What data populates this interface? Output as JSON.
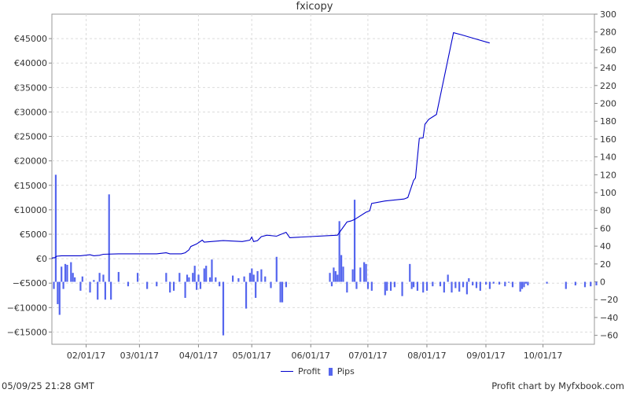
{
  "chart_data": {
    "type": "line",
    "title": "fxicopy",
    "x_tick_labels": [
      "02/01/17",
      "03/01/17",
      "04/01/17",
      "05/01/17",
      "06/01/17",
      "07/01/17",
      "08/01/17",
      "09/01/17",
      "10/01/17"
    ],
    "y_left": {
      "label": "Profit",
      "ylim": [
        -17500,
        50000
      ],
      "ticks": [
        -15000,
        -10000,
        -5000,
        0,
        5000,
        10000,
        15000,
        20000,
        25000,
        30000,
        35000,
        40000,
        45000
      ],
      "tick_labels": [
        "−€15000",
        "−€10000",
        "−€5000",
        "€0",
        "€5000",
        "€10000",
        "€15000",
        "€20000",
        "€25000",
        "€30000",
        "€35000",
        "€40000",
        "€45000"
      ]
    },
    "y_right": {
      "label": "Pips",
      "ylim": [
        -70,
        300
      ],
      "ticks": [
        -60,
        -40,
        -20,
        0,
        20,
        40,
        60,
        80,
        100,
        120,
        140,
        160,
        180,
        200,
        220,
        240,
        260,
        280,
        300
      ],
      "tick_labels": [
        "−60",
        "−40",
        "−20",
        "0",
        "20",
        "40",
        "60",
        "80",
        "100",
        "120",
        "140",
        "160",
        "180",
        "200",
        "220",
        "240",
        "260",
        "280",
        "300"
      ]
    },
    "series": [
      {
        "name": "Profit",
        "kind": "line",
        "color": "#0000cc",
        "points": [
          [
            0.0,
            0
          ],
          [
            0.5,
            200
          ],
          [
            1.5,
            200
          ],
          [
            2.5,
            500
          ],
          [
            5,
            600
          ],
          [
            10,
            600
          ],
          [
            15,
            600
          ],
          [
            20,
            800
          ],
          [
            22,
            600
          ],
          [
            25,
            700
          ],
          [
            27,
            900
          ],
          [
            35,
            1000
          ],
          [
            45,
            1000
          ],
          [
            55,
            1000
          ],
          [
            60,
            1200
          ],
          [
            62,
            1000
          ],
          [
            68,
            1000
          ],
          [
            70,
            1200
          ],
          [
            72,
            1800
          ],
          [
            73,
            2500
          ],
          [
            76,
            3000
          ],
          [
            79,
            3800
          ],
          [
            80,
            3400
          ],
          [
            90,
            3700
          ],
          [
            100,
            3500
          ],
          [
            104,
            3800
          ],
          [
            105,
            4400
          ],
          [
            106,
            3500
          ],
          [
            108,
            3700
          ],
          [
            110,
            4500
          ],
          [
            113,
            4800
          ],
          [
            118,
            4600
          ],
          [
            123,
            5400
          ],
          [
            125,
            4300
          ],
          [
            150,
            4800
          ],
          [
            155,
            7500
          ],
          [
            157,
            7700
          ],
          [
            159,
            8000
          ],
          [
            165,
            9500
          ],
          [
            167,
            9800
          ],
          [
            168,
            11300
          ],
          [
            175,
            11800
          ],
          [
            185,
            12200
          ],
          [
            187,
            12500
          ],
          [
            190,
            16000
          ],
          [
            191,
            16500
          ],
          [
            193,
            24600
          ],
          [
            195,
            24700
          ],
          [
            196,
            27500
          ],
          [
            198,
            28500
          ],
          [
            202,
            29500
          ],
          [
            211,
            46200
          ],
          [
            215,
            45800
          ],
          [
            222,
            45000
          ],
          [
            230,
            44100
          ]
        ]
      },
      {
        "name": "Pips",
        "kind": "bar",
        "color": "#5566ee",
        "points": [
          [
            1,
            -8
          ],
          [
            2,
            120
          ],
          [
            3,
            -25
          ],
          [
            4,
            -37
          ],
          [
            5,
            17
          ],
          [
            6,
            -8
          ],
          [
            7,
            20
          ],
          [
            8,
            19
          ],
          [
            10,
            22
          ],
          [
            11,
            10
          ],
          [
            12,
            5
          ],
          [
            15,
            -10
          ],
          [
            16,
            6
          ],
          [
            20,
            -12
          ],
          [
            22,
            2
          ],
          [
            24,
            -20
          ],
          [
            25,
            10
          ],
          [
            27,
            8
          ],
          [
            28,
            -20
          ],
          [
            30,
            98
          ],
          [
            31,
            -20
          ],
          [
            35,
            11
          ],
          [
            40,
            -5
          ],
          [
            45,
            10
          ],
          [
            50,
            -8
          ],
          [
            55,
            -5
          ],
          [
            60,
            10
          ],
          [
            62,
            -12
          ],
          [
            64,
            -10
          ],
          [
            67,
            10
          ],
          [
            70,
            -18
          ],
          [
            71,
            8
          ],
          [
            72,
            5
          ],
          [
            74,
            10
          ],
          [
            75,
            18
          ],
          [
            76,
            -9
          ],
          [
            77,
            8
          ],
          [
            78,
            -8
          ],
          [
            80,
            15
          ],
          [
            81,
            18
          ],
          [
            83,
            5
          ],
          [
            84,
            25
          ],
          [
            86,
            5
          ],
          [
            88,
            -5
          ],
          [
            90,
            -60
          ],
          [
            95,
            7
          ],
          [
            98,
            4
          ],
          [
            101,
            6
          ],
          [
            102,
            -30
          ],
          [
            104,
            10
          ],
          [
            105,
            15
          ],
          [
            106,
            8
          ],
          [
            107,
            -18
          ],
          [
            108,
            12
          ],
          [
            110,
            14
          ],
          [
            112,
            6
          ],
          [
            115,
            -7
          ],
          [
            118,
            28
          ],
          [
            120,
            -23
          ],
          [
            121,
            -23
          ],
          [
            123,
            -6
          ],
          [
            146,
            10
          ],
          [
            147,
            -5
          ],
          [
            148,
            16
          ],
          [
            149,
            12
          ],
          [
            150,
            8
          ],
          [
            151,
            68
          ],
          [
            152,
            30
          ],
          [
            153,
            17
          ],
          [
            155,
            -12
          ],
          [
            158,
            14
          ],
          [
            159,
            92
          ],
          [
            160,
            -8
          ],
          [
            162,
            16
          ],
          [
            164,
            22
          ],
          [
            165,
            20
          ],
          [
            166,
            -8
          ],
          [
            168,
            -10
          ],
          [
            175,
            -15
          ],
          [
            176,
            -10
          ],
          [
            178,
            -10
          ],
          [
            180,
            -6
          ],
          [
            184,
            -16
          ],
          [
            188,
            20
          ],
          [
            189,
            -8
          ],
          [
            190,
            -6
          ],
          [
            192,
            -10
          ],
          [
            195,
            -12
          ],
          [
            197,
            -10
          ],
          [
            200,
            -5
          ],
          [
            204,
            -5
          ],
          [
            206,
            -12
          ],
          [
            208,
            8
          ],
          [
            210,
            -12
          ],
          [
            212,
            -7
          ],
          [
            214,
            -11
          ],
          [
            216,
            -6
          ],
          [
            218,
            -14
          ],
          [
            219,
            4
          ],
          [
            221,
            -4
          ],
          [
            223,
            -7
          ],
          [
            225,
            -10
          ],
          [
            228,
            -3
          ],
          [
            230,
            -8
          ],
          [
            232,
            -2
          ],
          [
            235,
            -3
          ],
          [
            238,
            -5
          ],
          [
            240,
            -1
          ],
          [
            242,
            -6
          ],
          [
            246,
            -11
          ],
          [
            247,
            -8
          ],
          [
            248,
            -6
          ],
          [
            249,
            -2
          ],
          [
            250,
            -4
          ],
          [
            260,
            -2
          ],
          [
            270,
            -8
          ],
          [
            275,
            -4
          ],
          [
            280,
            -6
          ],
          [
            283,
            -5
          ],
          [
            286,
            -4
          ]
        ]
      }
    ],
    "grid": true,
    "legend_position": "bottom-center"
  },
  "footer": {
    "timestamp": "05/09/25 21:28 GMT",
    "credit": "Profit chart  by Myfxbook.com"
  }
}
